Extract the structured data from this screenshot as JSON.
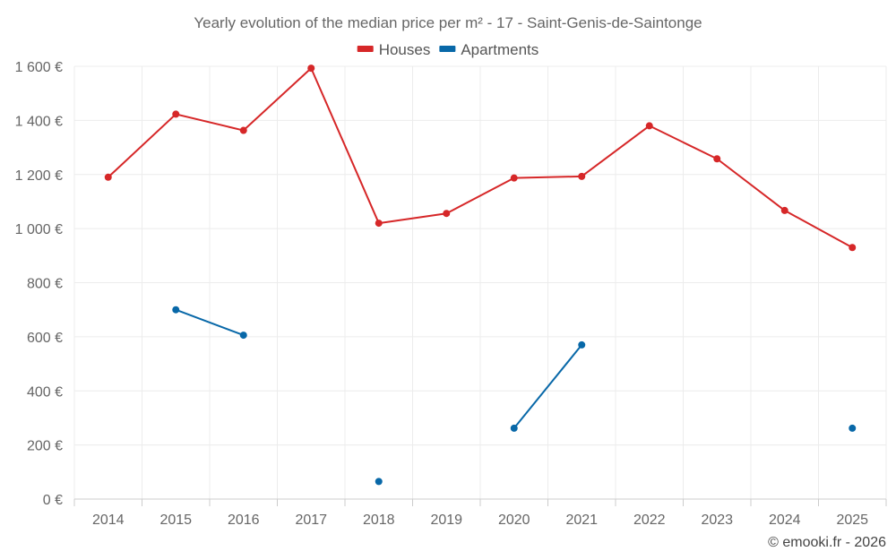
{
  "chart_data": {
    "type": "line",
    "title": "Yearly evolution of the median price per m² - 17 - Saint-Genis-de-Saintonge",
    "xlabel": "",
    "ylabel": "",
    "categories": [
      "2014",
      "2015",
      "2016",
      "2017",
      "2018",
      "2019",
      "2020",
      "2021",
      "2022",
      "2023",
      "2024",
      "2025"
    ],
    "ylim": [
      0,
      1600
    ],
    "yticks": [
      0,
      200,
      400,
      600,
      800,
      1000,
      1200,
      1400,
      1600
    ],
    "ytick_labels": [
      "0 €",
      "200 €",
      "400 €",
      "600 €",
      "800 €",
      "1 000 €",
      "1 200 €",
      "1 400 €",
      "1 600 €"
    ],
    "grid": true,
    "legend_position": "top-center",
    "series": [
      {
        "name": "Houses",
        "color": "#d62728",
        "values": [
          1190,
          1423,
          1363,
          1593,
          1020,
          1056,
          1187,
          1193,
          1380,
          1258,
          1067,
          930
        ]
      },
      {
        "name": "Apartments",
        "color": "#0868a8",
        "values": [
          null,
          700,
          606,
          null,
          65,
          null,
          262,
          570,
          null,
          null,
          null,
          262
        ]
      }
    ]
  },
  "credit": "© emooki.fr - 2026"
}
